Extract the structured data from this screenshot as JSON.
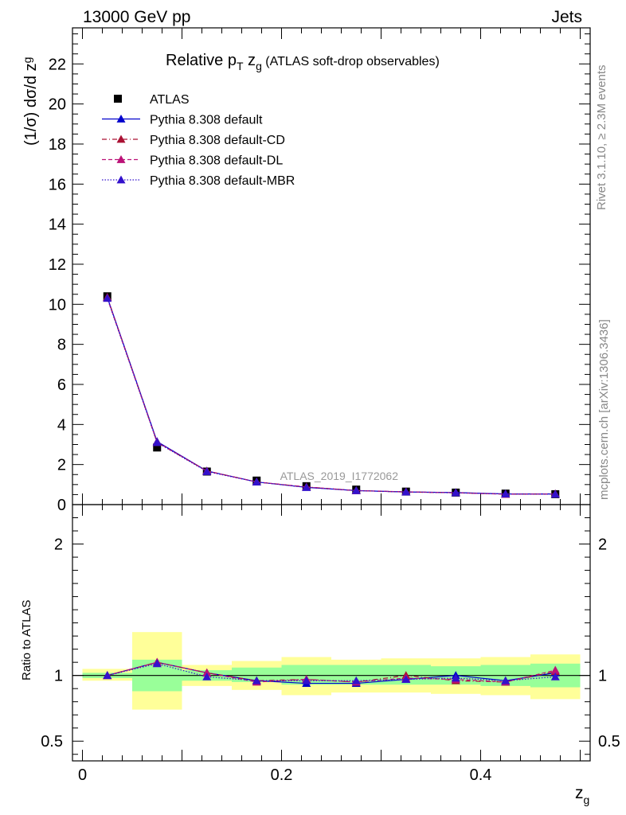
{
  "header": {
    "left": "13000 GeV pp",
    "right": "Jets"
  },
  "side_labels": {
    "rivet": "Rivet 3.1.10, ≥ 2.3M events",
    "mcplots": "mcplots.cern.ch [arXiv:1306.3436]"
  },
  "chart_data": [
    {
      "type": "scatter",
      "panel": "main",
      "title": {
        "prefix": "Relative p",
        "sub": "T",
        "mid": " z",
        "sub2": "g",
        "suffix": " (ATLAS soft-drop observables)"
      },
      "watermark": "ATLAS_2019_I1772062",
      "ylabel": "(1/σ) dσ/d z",
      "ylabel_sub": "g",
      "ylim": [
        0,
        23.8
      ],
      "xlim": [
        -0.01,
        0.51
      ],
      "yticks": [
        0,
        2,
        4,
        6,
        8,
        10,
        12,
        14,
        16,
        18,
        20,
        22
      ],
      "ytick_labels": [
        "0",
        "2",
        "4",
        "6",
        "8",
        "10",
        "12",
        "14",
        "16",
        "18",
        "20",
        "22"
      ],
      "x": [
        0.025,
        0.075,
        0.125,
        0.175,
        0.225,
        0.275,
        0.325,
        0.375,
        0.425,
        0.475
      ],
      "legend_position": "top-left",
      "series": [
        {
          "name": "ATLAS",
          "color": "#000000",
          "marker": "square",
          "values": [
            10.4,
            2.85,
            1.65,
            1.2,
            0.92,
            0.75,
            0.65,
            0.6,
            0.55,
            0.52
          ]
        },
        {
          "name": "Pythia 8.308 default",
          "color": "#0000cc",
          "marker": "triangle",
          "line": "solid",
          "values": [
            10.35,
            3.15,
            1.68,
            1.13,
            0.86,
            0.7,
            0.63,
            0.6,
            0.53,
            0.53
          ]
        },
        {
          "name": "Pythia 8.308 default-CD",
          "color": "#aa1133",
          "marker": "triangle",
          "line": "dashdot",
          "values": [
            10.35,
            3.1,
            1.68,
            1.13,
            0.88,
            0.7,
            0.63,
            0.59,
            0.52,
            0.53
          ]
        },
        {
          "name": "Pythia 8.308 default-DL",
          "color": "#bb1177",
          "marker": "triangle",
          "line": "dashed",
          "values": [
            10.3,
            3.12,
            1.67,
            1.13,
            0.88,
            0.7,
            0.64,
            0.59,
            0.52,
            0.53
          ]
        },
        {
          "name": "Pythia 8.308 default-MBR",
          "color": "#3311cc",
          "marker": "triangle",
          "line": "dotted",
          "values": [
            10.3,
            3.1,
            1.65,
            1.13,
            0.86,
            0.7,
            0.63,
            0.59,
            0.53,
            0.52
          ]
        }
      ]
    },
    {
      "type": "scatter",
      "panel": "ratio",
      "ylabel": "Ratio to ATLAS",
      "xlabel": "z",
      "xlabel_sub": "g",
      "ylim": [
        0.35,
        2.3
      ],
      "xlim": [
        -0.01,
        0.51
      ],
      "yticks": [
        0.5,
        1,
        2
      ],
      "ytick_labels": [
        "0.5",
        "1",
        "2"
      ],
      "xticks": [
        0,
        0.2,
        0.4
      ],
      "xtick_labels": [
        "0",
        "0.2",
        "0.4"
      ],
      "x": [
        0.025,
        0.075,
        0.125,
        0.175,
        0.225,
        0.275,
        0.325,
        0.375,
        0.425,
        0.475
      ],
      "bins": [
        [
          0.0,
          0.05
        ],
        [
          0.05,
          0.1
        ],
        [
          0.1,
          0.15
        ],
        [
          0.15,
          0.2
        ],
        [
          0.2,
          0.25
        ],
        [
          0.25,
          0.3
        ],
        [
          0.3,
          0.35
        ],
        [
          0.35,
          0.4
        ],
        [
          0.4,
          0.45
        ],
        [
          0.45,
          0.5
        ]
      ],
      "band_inner": [
        [
          0.98,
          1.02
        ],
        [
          0.88,
          1.12
        ],
        [
          0.96,
          1.04
        ],
        [
          0.95,
          1.06
        ],
        [
          0.93,
          1.08
        ],
        [
          0.93,
          1.08
        ],
        [
          0.93,
          1.08
        ],
        [
          0.93,
          1.07
        ],
        [
          0.92,
          1.08
        ],
        [
          0.91,
          1.09
        ]
      ],
      "band_outer": [
        [
          0.96,
          1.05
        ],
        [
          0.74,
          1.33
        ],
        [
          0.92,
          1.08
        ],
        [
          0.89,
          1.11
        ],
        [
          0.85,
          1.14
        ],
        [
          0.87,
          1.12
        ],
        [
          0.87,
          1.13
        ],
        [
          0.86,
          1.13
        ],
        [
          0.85,
          1.14
        ],
        [
          0.82,
          1.16
        ]
      ],
      "series": [
        {
          "name": "Pythia 8.308 default",
          "color": "#0000cc",
          "values": [
            1.0,
            1.1,
            1.02,
            0.96,
            0.94,
            0.94,
            0.97,
            1.0,
            0.96,
            1.02
          ]
        },
        {
          "name": "Pythia 8.308 default-CD",
          "color": "#aa1133",
          "values": [
            1.0,
            1.1,
            1.02,
            0.96,
            0.97,
            0.95,
            1.0,
            0.96,
            0.95,
            1.03
          ]
        },
        {
          "name": "Pythia 8.308 default-DL",
          "color": "#bb1177",
          "values": [
            1.0,
            1.1,
            1.02,
            0.95,
            0.97,
            0.95,
            0.98,
            0.97,
            0.95,
            1.04
          ]
        },
        {
          "name": "Pythia 8.308 default-MBR",
          "color": "#3311cc",
          "values": [
            1.0,
            1.09,
            0.99,
            0.96,
            0.96,
            0.96,
            0.97,
            0.98,
            0.96,
            0.99
          ]
        }
      ]
    }
  ]
}
